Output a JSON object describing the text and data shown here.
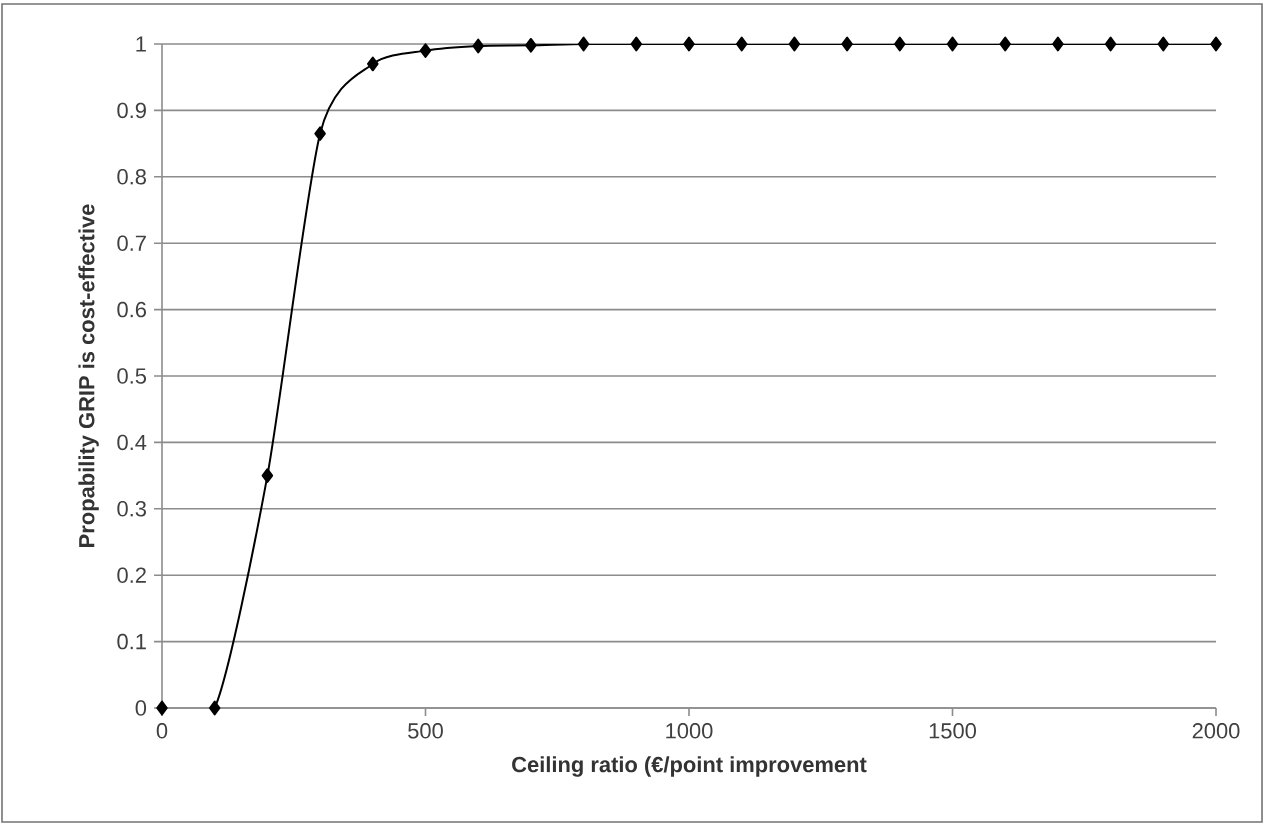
{
  "chart_data": {
    "type": "line",
    "xlabel": "Ceiling ratio (€/point improvement",
    "ylabel": "Propability GRIP is cost-effective",
    "x": [
      0,
      100,
      200,
      300,
      400,
      500,
      600,
      700,
      800,
      900,
      1000,
      1100,
      1200,
      1300,
      1400,
      1500,
      1600,
      1700,
      1800,
      1900,
      2000
    ],
    "series": [
      {
        "color": "#000000",
        "values": [
          0,
          0,
          0.35,
          0.865,
          0.97,
          0.99,
          0.997,
          0.998,
          1,
          1,
          1,
          1,
          1,
          1,
          1,
          1,
          1,
          1,
          1,
          1,
          1
        ]
      }
    ],
    "xlim": [
      0,
      2000
    ],
    "ylim": [
      0,
      1
    ],
    "xticks": [
      0,
      500,
      1000,
      1500,
      2000
    ],
    "yticks": [
      0,
      0.1,
      0.2,
      0.3,
      0.4,
      0.5,
      0.6,
      0.7,
      0.8,
      0.9,
      1
    ],
    "grid": "y",
    "marker": "diamond",
    "line_style": "solid"
  }
}
